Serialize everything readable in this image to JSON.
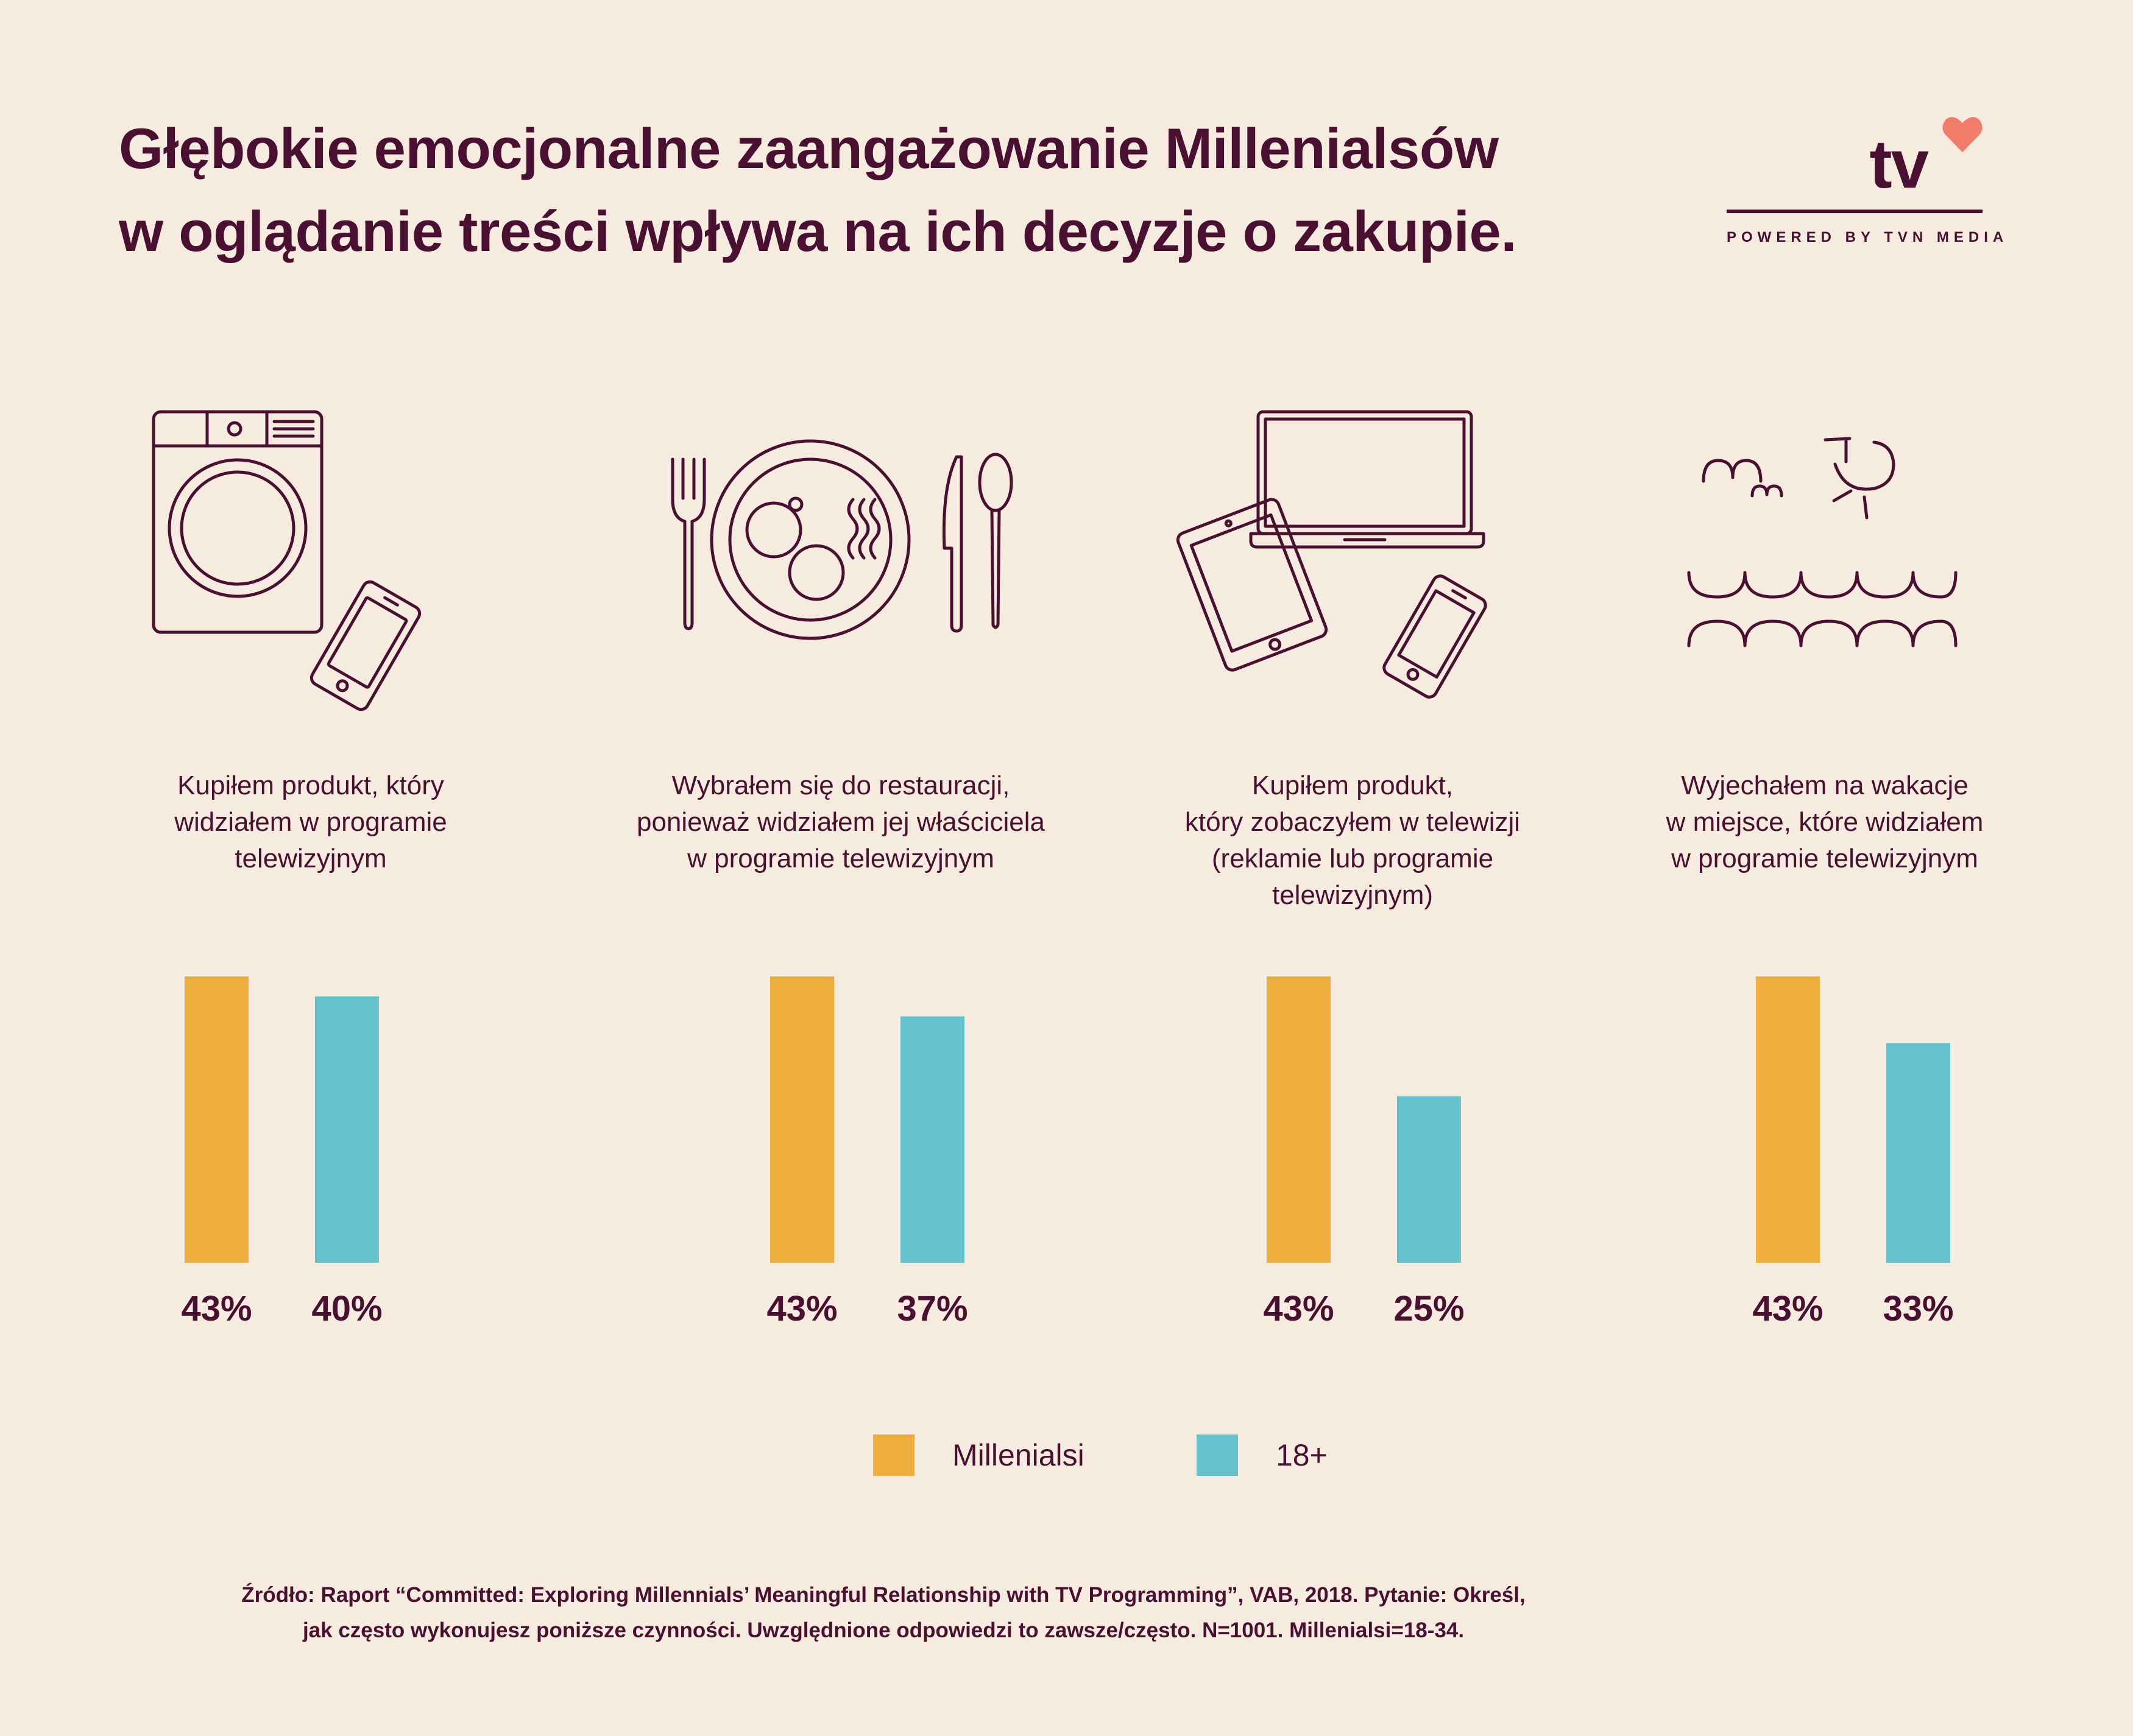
{
  "title": {
    "line1": "Głębokie emocjonalne zaangażowanie Millenialsów",
    "line2": "w oglądanie treści wpływa na ich decyzje o zakupie."
  },
  "logo": {
    "text": "tv",
    "tagline": "POWERED BY TVN MEDIA",
    "heart_color": "#F27C6A"
  },
  "icons": [
    "washing-machine-and-phone-icon",
    "plate-fork-knife-spoon-icon",
    "laptop-tablet-phone-icon",
    "sea-sun-birds-icon"
  ],
  "captions": [
    [
      "Kupiłem produkt, który",
      "widziałem w programie",
      "telewizyjnym"
    ],
    [
      "Wybrałem się do restauracji,",
      "ponieważ widziałem jej właściciela",
      "w programie telewizyjnym"
    ],
    [
      "Kupiłem produkt,",
      "który zobaczyłem w telewizji",
      "(reklamie lub programie",
      "telewizyjnym)"
    ],
    [
      "Wyjechałem na wakacje",
      "w miejsce, które widziałem",
      "w programie telewizyjnym"
    ]
  ],
  "chart_data": {
    "type": "bar",
    "categories": [
      "Kupiłem produkt, który widziałem w programie telewizyjnym",
      "Wybrałem się do restauracji, ponieważ widziałem jej właściciela w programie telewizyjnym",
      "Kupiłem produkt, który zobaczyłem w telewizji (reklamie lub programie telewizyjnym)",
      "Wyjechałem na wakacje w miejsce, które widziałem w programie telewizyjnym"
    ],
    "series": [
      {
        "name": "Millenialsi",
        "color": "#EDAE3B",
        "values": [
          43,
          43,
          43,
          43
        ]
      },
      {
        "name": "18+",
        "color": "#64C2CC",
        "values": [
          40,
          37,
          25,
          33
        ]
      }
    ],
    "value_suffix": "%",
    "ylim": [
      0,
      43
    ],
    "grid": false,
    "legend_position": "bottom-center",
    "xlabel": "",
    "ylabel": ""
  },
  "source": {
    "line1": "Źródło: Raport “Committed: Exploring Millennials’ Meaningful Relationship with TV Programming”, VAB, 2018. Pytanie: Określ,",
    "line2": "jak często wykonujesz poniższe czynności. Uwzględnione odpowiedzi to zawsze/często. N=1001. Millenialsi=18-34."
  }
}
